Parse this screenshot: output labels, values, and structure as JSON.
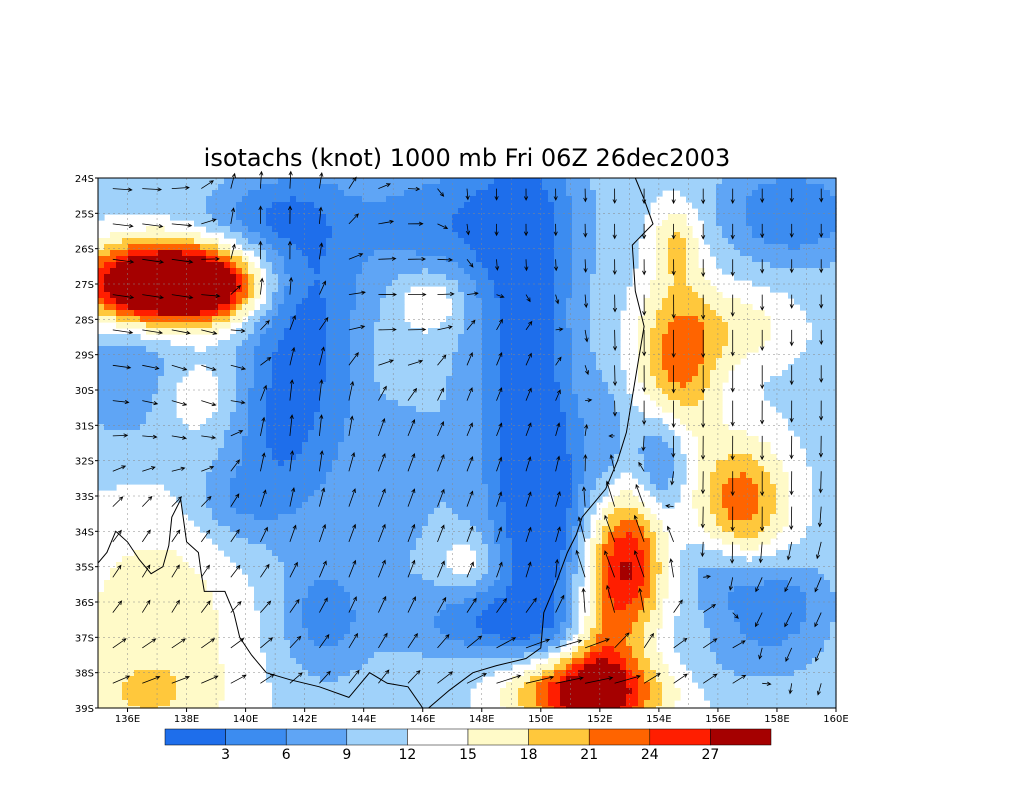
{
  "chart_data": {
    "type": "heatmap",
    "title": "isotachs (knot) 1000 mb Fri 06Z 26dec2003",
    "xlabel": "",
    "ylabel": "",
    "xlim": [
      135,
      160
    ],
    "ylim": [
      -39,
      -24
    ],
    "x_ticks": [
      "136E",
      "138E",
      "140E",
      "142E",
      "144E",
      "146E",
      "148E",
      "150E",
      "152E",
      "154E",
      "156E",
      "158E",
      "160E"
    ],
    "y_ticks": [
      "24S",
      "25S",
      "26S",
      "27S",
      "28S",
      "29S",
      "30S",
      "31S",
      "32S",
      "33S",
      "34S",
      "35S",
      "36S",
      "37S",
      "38S",
      "39S"
    ],
    "grid": true,
    "colorbar": {
      "labels": [
        "3",
        "6",
        "9",
        "12",
        "15",
        "18",
        "21",
        "24",
        "27"
      ],
      "colors": [
        "#1e6eeb",
        "#3c8cf0",
        "#5fa5f5",
        "#a0d2fa",
        "#ffffff",
        "#fffac8",
        "#ffc83c",
        "#ff6400",
        "#ff1e00",
        "#a50000"
      ]
    },
    "levels": [
      0,
      3,
      6,
      9,
      12,
      15,
      18,
      21,
      24,
      27,
      100
    ],
    "features": [
      {
        "lon": 137.2,
        "lat": -27.0,
        "sx": 1.9,
        "sy": 0.8,
        "v": 29
      },
      {
        "lon": 138.8,
        "lat": -27.1,
        "sx": 1.2,
        "sy": 0.6,
        "v": 7
      },
      {
        "lon": 136.2,
        "lat": -29.5,
        "sx": 1.6,
        "sy": 1.4,
        "v": -5
      },
      {
        "lon": 138.3,
        "lat": -30.1,
        "sx": 1.0,
        "sy": 0.8,
        "v": 5
      },
      {
        "lon": 137.0,
        "lat": -36.5,
        "sx": 2.3,
        "sy": 2.3,
        "v": 6
      },
      {
        "lon": 136.5,
        "lat": -38.8,
        "sx": 2.0,
        "sy": 0.8,
        "v": 4
      },
      {
        "lon": 139.5,
        "lat": -33.2,
        "sx": 1.0,
        "sy": 0.8,
        "v": -4
      },
      {
        "lon": 142.0,
        "lat": -27.5,
        "sx": 1.3,
        "sy": 2.6,
        "v": -8
      },
      {
        "lon": 141.0,
        "lat": -31.5,
        "sx": 1.2,
        "sy": 2.0,
        "v": -6
      },
      {
        "lon": 140.5,
        "lat": -25.0,
        "sx": 1.5,
        "sy": 0.7,
        "v": -5
      },
      {
        "lon": 144.5,
        "lat": -32.0,
        "sx": 2.0,
        "sy": 3.5,
        "v": -3
      },
      {
        "lon": 142.6,
        "lat": -36.5,
        "sx": 1.0,
        "sy": 1.1,
        "v": -6
      },
      {
        "lon": 146.2,
        "lat": -27.5,
        "sx": 0.8,
        "sy": 0.6,
        "v": 6
      },
      {
        "lon": 147.5,
        "lat": -34.8,
        "sx": 0.6,
        "sy": 0.5,
        "v": 5
      },
      {
        "lon": 144.8,
        "lat": -29.2,
        "sx": 0.9,
        "sy": 0.9,
        "v": 2
      },
      {
        "lon": 149.5,
        "lat": -29.0,
        "sx": 1.2,
        "sy": 5.0,
        "v": -10
      },
      {
        "lon": 147.0,
        "lat": -25.2,
        "sx": 2.5,
        "sy": 1.2,
        "v": -7
      },
      {
        "lon": 150.2,
        "lat": -33.5,
        "sx": 0.9,
        "sy": 2.0,
        "v": -8
      },
      {
        "lon": 148.5,
        "lat": -36.6,
        "sx": 2.0,
        "sy": 0.7,
        "v": -7
      },
      {
        "lon": 154.7,
        "lat": -29.0,
        "sx": 1.0,
        "sy": 1.5,
        "v": 12
      },
      {
        "lon": 156.8,
        "lat": -33.2,
        "sx": 1.1,
        "sy": 1.3,
        "v": 12
      },
      {
        "lon": 152.9,
        "lat": -35.0,
        "sx": 0.9,
        "sy": 1.5,
        "v": 16
      },
      {
        "lon": 151.5,
        "lat": -38.6,
        "sx": 1.8,
        "sy": 0.8,
        "v": 19
      },
      {
        "lon": 152.0,
        "lat": -37.5,
        "sx": 0.7,
        "sy": 1.5,
        "v": 6
      },
      {
        "lon": 154.6,
        "lat": -25.8,
        "sx": 0.6,
        "sy": 0.8,
        "v": 7
      },
      {
        "lon": 157.0,
        "lat": -28.2,
        "sx": 1.2,
        "sy": 0.8,
        "v": 5
      },
      {
        "lon": 157.8,
        "lat": -36.1,
        "sx": 1.3,
        "sy": 0.9,
        "v": -8
      },
      {
        "lon": 154.0,
        "lat": -32.0,
        "sx": 0.6,
        "sy": 1.0,
        "v": -7
      },
      {
        "lon": 156.0,
        "lat": -35.0,
        "sx": 1.0,
        "sy": 0.8,
        "v": -4
      },
      {
        "lon": 158.5,
        "lat": -25.0,
        "sx": 1.7,
        "sy": 1.0,
        "v": -8
      },
      {
        "lon": 157.0,
        "lat": -37.7,
        "sx": 2.0,
        "sy": 0.6,
        "v": -2
      },
      {
        "lon": 152.2,
        "lat": -31.5,
        "sx": 0.5,
        "sy": 1.3,
        "v": -4
      }
    ],
    "base_value": 11,
    "wind_field": [
      {
        "lon": 137,
        "lat": -27,
        "u": 10,
        "v": -1.5
      },
      {
        "lon": 138.5,
        "lat": -29.5,
        "u": 6,
        "v": -2
      },
      {
        "lon": 137,
        "lat": -36,
        "u": 3,
        "v": 5
      },
      {
        "lon": 137,
        "lat": -38.5,
        "u": 8,
        "v": 3
      },
      {
        "lon": 141,
        "lat": -26,
        "u": 0,
        "v": 8
      },
      {
        "lon": 142,
        "lat": -31,
        "u": 1,
        "v": 10
      },
      {
        "lon": 145,
        "lat": -27.5,
        "u": 8,
        "v": 0
      },
      {
        "lon": 145,
        "lat": -33,
        "u": 3,
        "v": 8
      },
      {
        "lon": 148,
        "lat": -30,
        "u": 2,
        "v": 5
      },
      {
        "lon": 149,
        "lat": -25,
        "u": 0,
        "v": -4
      },
      {
        "lon": 150,
        "lat": -34,
        "u": 2,
        "v": 6
      },
      {
        "lon": 151,
        "lat": -38.6,
        "u": 15,
        "v": 3
      },
      {
        "lon": 152.5,
        "lat": -35,
        "u": -6,
        "v": 16
      },
      {
        "lon": 154,
        "lat": -25,
        "u": 0,
        "v": -6
      },
      {
        "lon": 155,
        "lat": -29,
        "u": 0,
        "v": -14
      },
      {
        "lon": 157,
        "lat": -33,
        "u": 0,
        "v": -12
      },
      {
        "lon": 158,
        "lat": -36,
        "u": -3,
        "v": -6
      },
      {
        "lon": 159,
        "lat": -26,
        "u": 0,
        "v": -5
      },
      {
        "lon": 155.5,
        "lat": -37.5,
        "u": 6,
        "v": 4
      }
    ]
  }
}
